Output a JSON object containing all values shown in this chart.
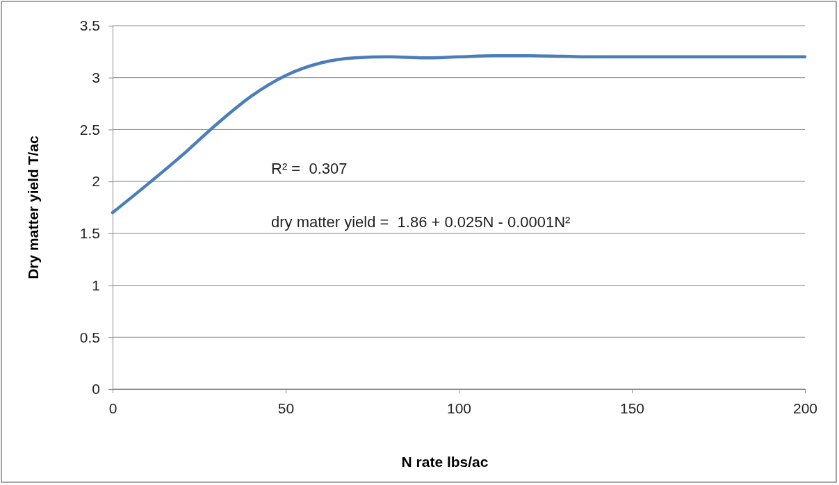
{
  "chart_data": {
    "type": "line",
    "xlabel": "N rate lbs/ac",
    "ylabel": "Dry matter yield T/ac",
    "x": [
      0,
      10,
      20,
      30,
      40,
      50,
      60,
      70,
      80,
      90,
      100,
      110,
      120,
      130,
      140,
      150,
      175,
      200
    ],
    "series": [
      {
        "color": "#4a7ebb",
        "values": [
          1.7,
          1.97,
          2.25,
          2.55,
          2.82,
          3.02,
          3.14,
          3.19,
          3.2,
          3.19,
          3.2,
          3.21,
          3.21,
          3.205,
          3.2,
          3.2,
          3.2,
          3.2
        ]
      }
    ],
    "xlim": [
      0,
      200
    ],
    "xticks": [
      0,
      50,
      100,
      150,
      200
    ],
    "ylim": [
      0,
      3.5
    ],
    "yticks": [
      0,
      0.5,
      1,
      1.5,
      2,
      2.5,
      3,
      3.5
    ],
    "grid": "y",
    "line_style": "solid",
    "marker": "none",
    "annotations": [
      "R² =  0.307",
      "dry matter yield =  1.86 + 0.025N - 0.0001N²"
    ]
  }
}
